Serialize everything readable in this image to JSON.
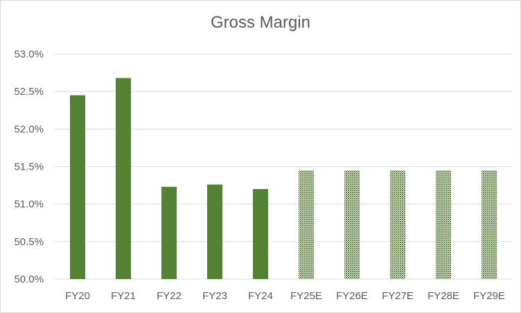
{
  "chart_data": {
    "type": "bar",
    "title": "Gross Margin",
    "xlabel": "",
    "ylabel": "",
    "categories": [
      "FY20",
      "FY21",
      "FY22",
      "FY23",
      "FY24",
      "FY25E",
      "FY26E",
      "FY27E",
      "FY28E",
      "FY29E"
    ],
    "values": [
      52.45,
      52.68,
      51.23,
      51.26,
      51.2,
      51.45,
      51.45,
      51.45,
      51.45,
      51.45
    ],
    "estimated": [
      false,
      false,
      false,
      false,
      false,
      true,
      true,
      true,
      true,
      true
    ],
    "ylim": [
      50.0,
      53.0
    ],
    "y_ticks": [
      "50.0%",
      "50.5%",
      "51.0%",
      "51.5%",
      "52.0%",
      "52.5%",
      "53.0%"
    ],
    "grid": true,
    "legend": "none",
    "colors": {
      "actual_bar": "#548235",
      "estimate_pattern": "#548235",
      "gridline": "#d9d9d9",
      "text": "#595959"
    }
  }
}
